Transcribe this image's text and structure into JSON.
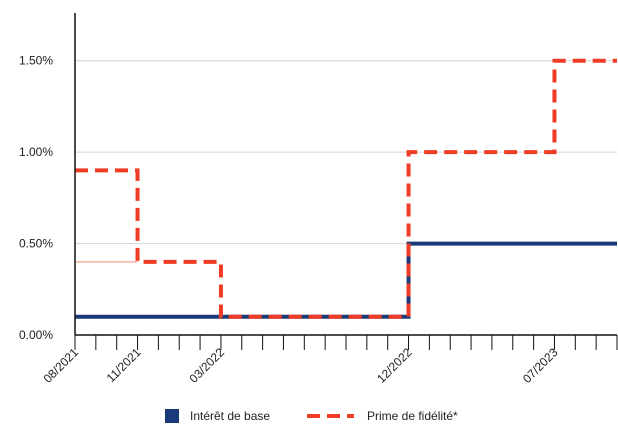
{
  "chart_data": {
    "type": "line",
    "step": true,
    "x_type": "month",
    "xlim": [
      "2021-08",
      "2023-10"
    ],
    "x_tick_labels": [
      {
        "x": "2021-08",
        "label": "08/2021"
      },
      {
        "x": "2021-11",
        "label": "11/2021"
      },
      {
        "x": "2022-03",
        "label": "03/2022"
      },
      {
        "x": "2022-12",
        "label": "12/2022"
      },
      {
        "x": "2023-07",
        "label": "07/2023"
      }
    ],
    "ylim": [
      0,
      1.75
    ],
    "y_ticks": [
      0,
      0.5,
      1.0,
      1.5
    ],
    "y_tick_labels": [
      "0.00%",
      "0.50%",
      "1.00%",
      "1.50%"
    ],
    "grid": "horizontal",
    "legend_position": "bottom",
    "series": [
      {
        "name": "Intérêt de base",
        "color": "#1a3a7a",
        "style": "solid",
        "points": [
          {
            "x": "2021-08",
            "y": 0.1
          },
          {
            "x": "2022-12",
            "y": 0.5
          }
        ]
      },
      {
        "name": "Prime de fidélité*",
        "color": "#f03c24",
        "style": "dashed",
        "points": [
          {
            "x": "2021-08",
            "y": 0.9
          },
          {
            "x": "2021-11",
            "y": 0.4
          },
          {
            "x": "2022-03",
            "y": 0.1
          },
          {
            "x": "2022-12",
            "y": 1.0
          },
          {
            "x": "2023-07",
            "y": 1.5
          }
        ]
      }
    ]
  }
}
